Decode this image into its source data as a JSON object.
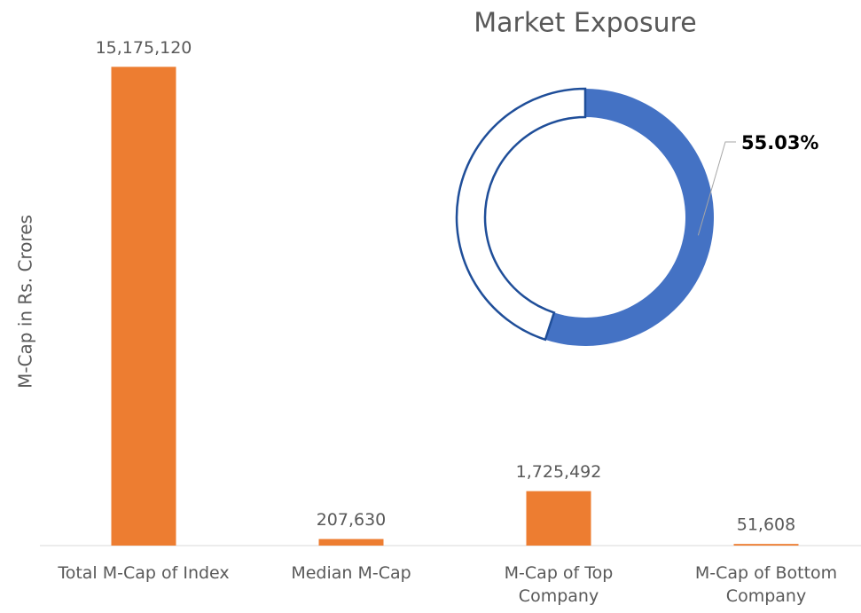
{
  "chart_data": [
    {
      "type": "bar",
      "y_label": "M-Cap in Rs. Crores",
      "categories": [
        "Total M-Cap of Index",
        "Median M-Cap",
        "M-Cap of Top Company",
        "M-Cap of Bottom Company"
      ],
      "values": [
        15175120,
        207630,
        1725492,
        51608
      ],
      "value_labels": [
        "15,175,120",
        "207,630",
        "1,725,492",
        "51,608"
      ],
      "color": "#ED7D31",
      "ylim": [
        0,
        16000000
      ]
    },
    {
      "type": "donut",
      "title": "Market Exposure",
      "values": [
        55.03,
        44.97
      ],
      "value_labels": [
        "55.03%",
        null
      ],
      "colors": [
        "#4472C4",
        "#FFFFFF"
      ],
      "outline": "#1F4E99"
    }
  ]
}
